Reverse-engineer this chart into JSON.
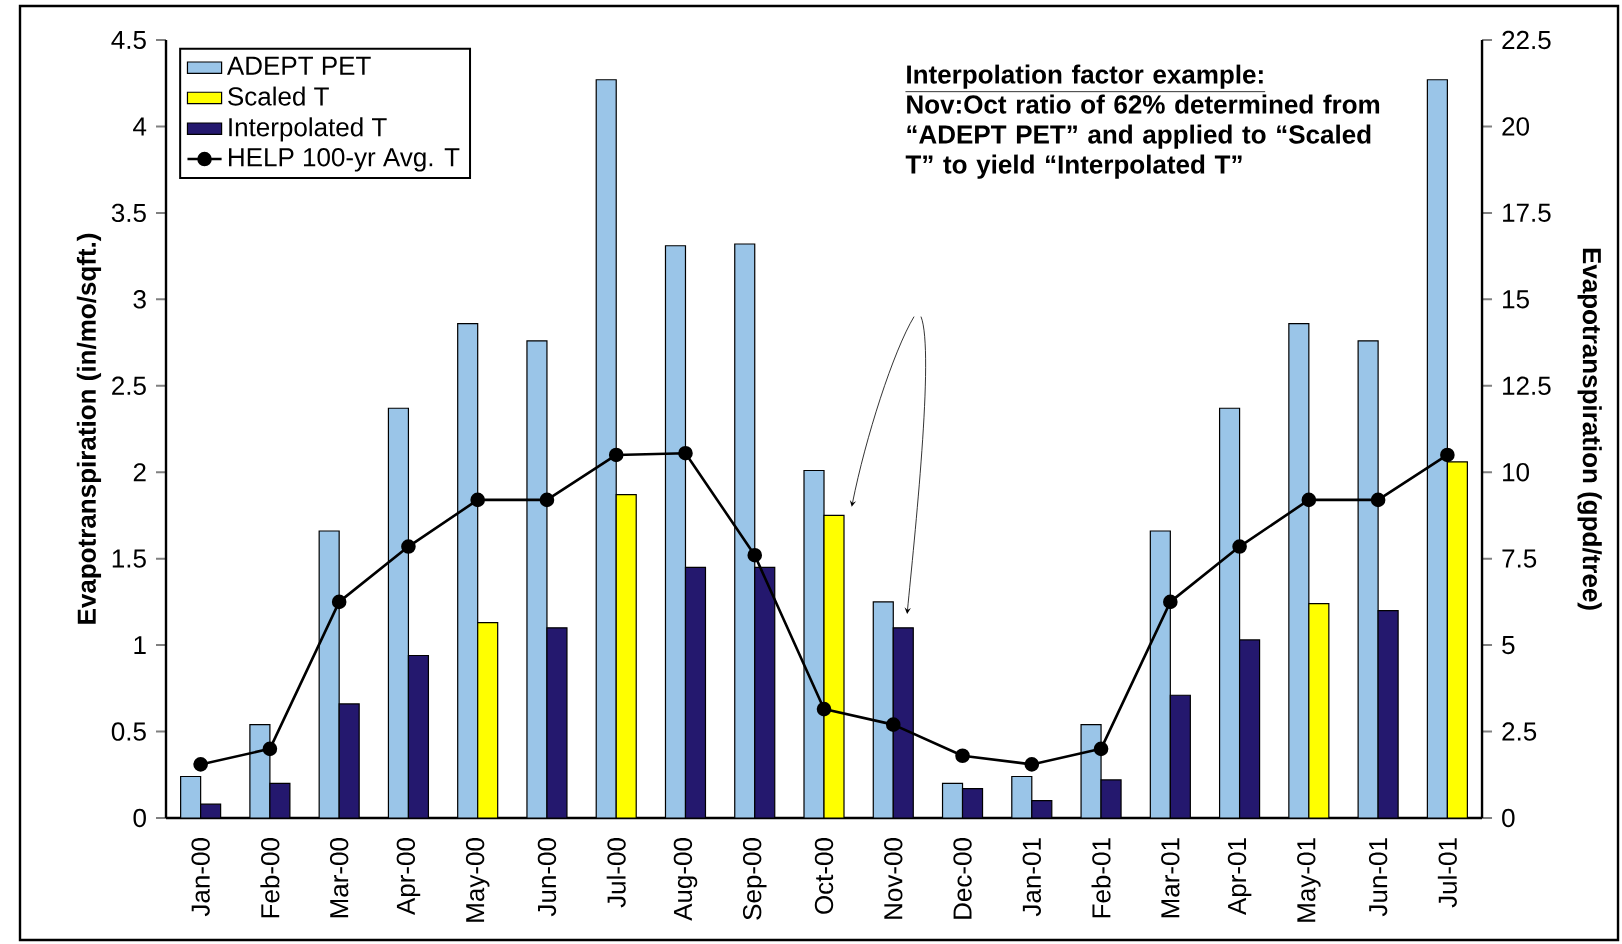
{
  "chart_data": {
    "type": "bar",
    "ylabel": "Evapotranspiration (in/mo/sqft.)",
    "y2label": "Evapotranspiration (gpd/tree)",
    "categories": [
      "Jan-00",
      "Feb-00",
      "Mar-00",
      "Apr-00",
      "May-00",
      "Jun-00",
      "Jul-00",
      "Aug-00",
      "Sep-00",
      "Oct-00",
      "Nov-00",
      "Dec-00",
      "Jan-01",
      "Feb-01",
      "Mar-01",
      "Apr-01",
      "May-01",
      "Jun-01",
      "Jul-01"
    ],
    "series": [
      {
        "name": "ADEPT PET",
        "color": "#9ac5e8",
        "values": [
          0.24,
          0.54,
          1.66,
          2.37,
          2.86,
          2.76,
          4.27,
          3.31,
          3.32,
          2.01,
          1.25,
          0.2,
          0.24,
          0.54,
          1.66,
          2.37,
          2.86,
          2.76,
          4.27
        ]
      },
      {
        "name": "Scaled T",
        "color": "#ffff00",
        "values": [
          null,
          null,
          null,
          null,
          1.13,
          null,
          1.87,
          null,
          null,
          1.75,
          null,
          null,
          null,
          null,
          null,
          null,
          1.24,
          null,
          2.06
        ]
      },
      {
        "name": "Interpolated T",
        "color": "#24186e",
        "values": [
          0.08,
          0.2,
          0.66,
          0.94,
          null,
          1.1,
          null,
          1.45,
          1.45,
          null,
          1.1,
          0.17,
          0.1,
          0.22,
          0.71,
          1.03,
          null,
          1.2,
          null
        ]
      },
      {
        "name": "HELP 100-yr Avg. T",
        "type": "line",
        "color": "#000000",
        "marker": "circle",
        "values": [
          0.31,
          0.4,
          1.25,
          1.57,
          1.84,
          1.84,
          2.1,
          2.11,
          1.52,
          0.63,
          0.54,
          0.36,
          0.31,
          0.4,
          1.25,
          1.57,
          1.84,
          1.84,
          2.1
        ]
      }
    ],
    "ylim": [
      0,
      4.5
    ],
    "yticks": [
      0,
      0.5,
      1,
      1.5,
      2,
      2.5,
      3,
      3.5,
      4,
      4.5
    ],
    "y2lim": [
      0,
      22.5
    ],
    "y2ticks": [
      0,
      2.5,
      5,
      7.5,
      10,
      12.5,
      15,
      17.5,
      20,
      22.5
    ],
    "legend": "top left",
    "grid": false,
    "annotations": [
      "Interpolation factor example:",
      "Nov:Oct ratio of 62% determined from “ADEPT PET” and applied to “Scaled T” to yield “Interpolated T”"
    ]
  }
}
